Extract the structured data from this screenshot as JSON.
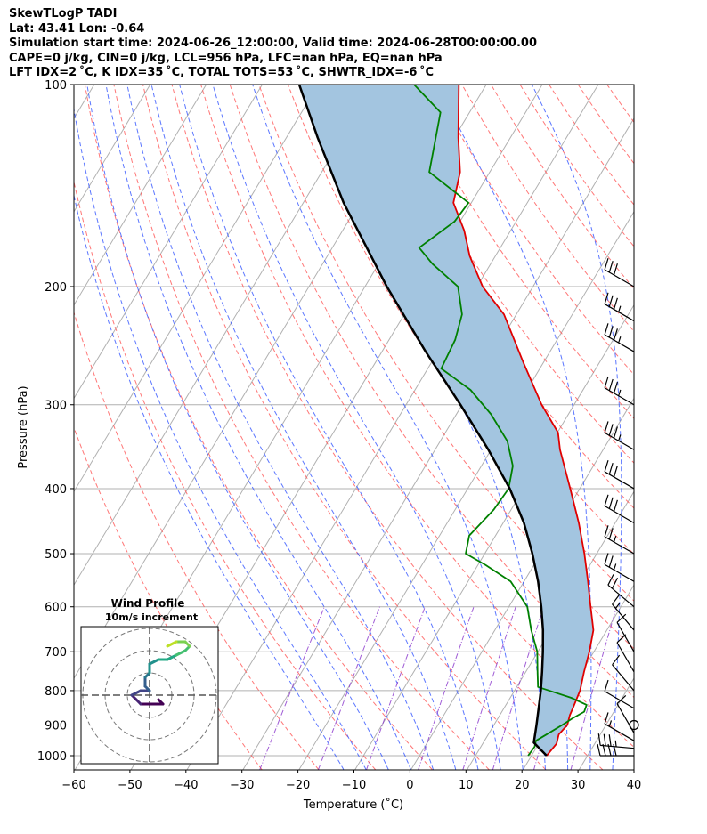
{
  "header": {
    "title": "SkewTLogP TADI",
    "location": "Lat: 43.41    Lon: -0.64",
    "times": "Simulation start time: 2024-06-26_12:00:00, Valid time: 2024-06-28T00:00:00.00",
    "params": "CAPE=0 j/kg, CIN=0 j/kg, LCL=956 hPa, LFC=nan hPa, EQ=nan hPa",
    "indices": "LFT IDX=2 ˚C, K IDX=35 ˚C, TOTAL TOTS=53 ˚C, SHWTR_IDX=-6 ˚C"
  },
  "chart_data": {
    "type": "line",
    "xlabel": "Temperature (˚C)",
    "ylabel": "Pressure (hPa)",
    "xlim": [
      -60,
      40
    ],
    "ylim": [
      1050,
      100
    ],
    "y_scale": "log",
    "skew": true,
    "grid": true,
    "xticks": [
      "−60",
      "−50",
      "−40",
      "−30",
      "−20",
      "−10",
      "0",
      "10",
      "20",
      "30",
      "40"
    ],
    "xtick_values": [
      -60,
      -50,
      -40,
      -30,
      -20,
      -10,
      0,
      10,
      20,
      30,
      40
    ],
    "yticks": [
      "100",
      "200",
      "300",
      "400",
      "500",
      "600",
      "700",
      "800",
      "900",
      "1000"
    ],
    "ytick_values": [
      100,
      200,
      300,
      400,
      500,
      600,
      700,
      800,
      900,
      1000
    ],
    "series": [
      {
        "role": "temperature",
        "color": "#e00000",
        "points": [
          [
            1000,
            22.7
          ],
          [
            960,
            23.2
          ],
          [
            930,
            22.6
          ],
          [
            900,
            23.1
          ],
          [
            870,
            22.5
          ],
          [
            850,
            22.3
          ],
          [
            800,
            21.7
          ],
          [
            750,
            20.4
          ],
          [
            700,
            19.2
          ],
          [
            650,
            17.6
          ],
          [
            600,
            14.6
          ],
          [
            550,
            11.4
          ],
          [
            500,
            7.8
          ],
          [
            450,
            3.5
          ],
          [
            400,
            -1.7
          ],
          [
            350,
            -7.7
          ],
          [
            330,
            -9.9
          ],
          [
            300,
            -15.8
          ],
          [
            260,
            -23.5
          ],
          [
            220,
            -32.2
          ],
          [
            200,
            -39.0
          ],
          [
            180,
            -44.6
          ],
          [
            165,
            -48.3
          ],
          [
            150,
            -53.2
          ],
          [
            135,
            -55.3
          ],
          [
            120,
            -59.3
          ],
          [
            100,
            -64.9
          ]
        ]
      },
      {
        "role": "dewpoint",
        "color": "#008000",
        "points": [
          [
            1000,
            19.4
          ],
          [
            970,
            19.6
          ],
          [
            950,
            19.2
          ],
          [
            930,
            20.4
          ],
          [
            900,
            22.2
          ],
          [
            880,
            23.3
          ],
          [
            860,
            24.7
          ],
          [
            840,
            24.4
          ],
          [
            820,
            20.9
          ],
          [
            790,
            13.8
          ],
          [
            750,
            12.1
          ],
          [
            700,
            9.9
          ],
          [
            650,
            6.5
          ],
          [
            600,
            3.3
          ],
          [
            550,
            -2.4
          ],
          [
            520,
            -8.6
          ],
          [
            500,
            -13.4
          ],
          [
            470,
            -14.7
          ],
          [
            430,
            -13.1
          ],
          [
            400,
            -12.7
          ],
          [
            370,
            -14.4
          ],
          [
            340,
            -18.0
          ],
          [
            310,
            -23.8
          ],
          [
            285,
            -30.1
          ],
          [
            265,
            -37.6
          ],
          [
            240,
            -38.2
          ],
          [
            220,
            -39.7
          ],
          [
            200,
            -43.4
          ],
          [
            185,
            -50.4
          ],
          [
            175,
            -54.5
          ],
          [
            160,
            -51.0
          ],
          [
            150,
            -50.5
          ],
          [
            135,
            -60.8
          ],
          [
            110,
            -65.2
          ],
          [
            100,
            -72.9
          ]
        ]
      },
      {
        "role": "parcel",
        "color": "#000000",
        "points": [
          [
            1000,
            22.7
          ],
          [
            970,
            20.2
          ],
          [
            956,
            19.0
          ],
          [
            900,
            17.6
          ],
          [
            850,
            16.2
          ],
          [
            800,
            14.7
          ],
          [
            750,
            12.9
          ],
          [
            700,
            10.9
          ],
          [
            650,
            8.6
          ],
          [
            600,
            5.8
          ],
          [
            550,
            2.5
          ],
          [
            500,
            -1.5
          ],
          [
            450,
            -6.3
          ],
          [
            400,
            -12.5
          ],
          [
            350,
            -20.5
          ],
          [
            300,
            -30.3
          ],
          [
            250,
            -42.2
          ],
          [
            200,
            -56.1
          ],
          [
            150,
            -72.8
          ],
          [
            120,
            -84.4
          ],
          [
            100,
            -93.4
          ]
        ]
      }
    ],
    "shaded": {
      "between": [
        "temperature",
        "parcel"
      ],
      "color": "#a3c5e0"
    },
    "dry_adiabats": {
      "color": "#ff5555",
      "style": "dashed"
    },
    "moist_adiabats": {
      "color": "#3355ff",
      "style": "dashed"
    },
    "mixing_ratio": {
      "color": "#8833cc",
      "style": "dashdot"
    },
    "wind_barbs": {
      "color": "#000000",
      "barbs": [
        {
          "p": 1000,
          "dir": 270,
          "kt": 40
        },
        {
          "p": 975,
          "dir": 275,
          "kt": 35
        },
        {
          "p": 950,
          "dir": 300,
          "kt": 15
        },
        {
          "p": 925,
          "dir": 330,
          "kt": 10
        },
        {
          "p": 900,
          "calm": true
        },
        {
          "p": 850,
          "dir": 300,
          "kt": 10
        },
        {
          "p": 800,
          "dir": 320,
          "kt": 10
        },
        {
          "p": 750,
          "dir": 330,
          "kt": 10
        },
        {
          "p": 700,
          "dir": 330,
          "kt": 10
        },
        {
          "p": 650,
          "dir": 320,
          "kt": 15
        },
        {
          "p": 600,
          "dir": 310,
          "kt": 20
        },
        {
          "p": 550,
          "dir": 300,
          "kt": 25
        },
        {
          "p": 500,
          "dir": 300,
          "kt": 25
        },
        {
          "p": 450,
          "dir": 300,
          "kt": 30
        },
        {
          "p": 400,
          "dir": 300,
          "kt": 30
        },
        {
          "p": 350,
          "dir": 300,
          "kt": 35
        },
        {
          "p": 300,
          "dir": 300,
          "kt": 35
        },
        {
          "p": 250,
          "dir": 300,
          "kt": 35
        },
        {
          "p": 225,
          "dir": 300,
          "kt": 35
        },
        {
          "p": 200,
          "dir": 300,
          "kt": 30
        }
      ]
    },
    "hodograph": {
      "title": "Wind Profile",
      "subtitle": "10m/s increment",
      "rings": 3,
      "colormap": "viridis",
      "points": [
        [
          2,
          -1
        ],
        [
          3,
          -2
        ],
        [
          -2,
          -2
        ],
        [
          -3,
          -1
        ],
        [
          -4,
          0
        ],
        [
          -2,
          1
        ],
        [
          0,
          1
        ],
        [
          -1,
          2
        ],
        [
          -1,
          4
        ],
        [
          0,
          5
        ],
        [
          0,
          7
        ],
        [
          2,
          8
        ],
        [
          4,
          8
        ],
        [
          6,
          9
        ],
        [
          8,
          10
        ],
        [
          9,
          11
        ],
        [
          8,
          12
        ],
        [
          6,
          12
        ],
        [
          4,
          11
        ]
      ]
    }
  }
}
